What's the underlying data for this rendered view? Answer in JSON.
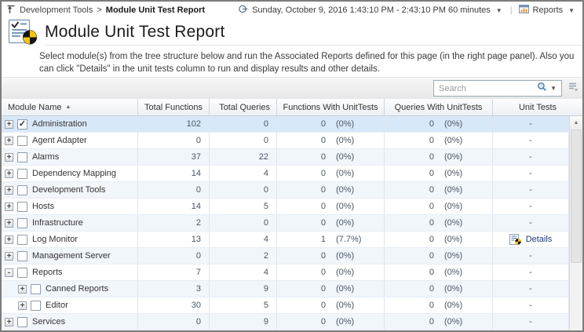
{
  "topbar": {
    "breadcrumb": {
      "parent": "Development Tools",
      "separator": ">",
      "current": "Module Unit Test Report"
    },
    "time_range": "Sunday, October 9, 2016 1:43:10 PM - 2:43:10 PM 60 minutes",
    "reports_label": "Reports"
  },
  "header": {
    "title": "Module Unit Test Report",
    "description": "Select module(s) from the tree structure below and run the Associated Reports defined for this page (in the right page panel). Also you can click \"Details\" in the unit tests column to run and display results and other details."
  },
  "toolbar": {
    "search_placeholder": "Search"
  },
  "table": {
    "columns": [
      {
        "label": "Module Name",
        "sort": "asc",
        "align": "left"
      },
      {
        "label": "Total Functions",
        "align": "right"
      },
      {
        "label": "Total Queries",
        "align": "right"
      },
      {
        "label": "Functions With UnitTests",
        "align": "center"
      },
      {
        "label": "Queries With UnitTests",
        "align": "center"
      },
      {
        "label": "Unit Tests",
        "align": "center"
      }
    ],
    "rows": [
      {
        "name": "Administration",
        "level": 0,
        "expander": "+",
        "checked": true,
        "selected": true,
        "total_functions": "102",
        "total_queries": "0",
        "functions_ut": "0",
        "functions_ut_pct": "(0%)",
        "queries_ut": "0",
        "queries_ut_pct": "(0%)",
        "unit_tests": "-"
      },
      {
        "name": "Agent Adapter",
        "level": 0,
        "expander": "+",
        "checked": false,
        "selected": false,
        "total_functions": "0",
        "total_queries": "0",
        "functions_ut": "0",
        "functions_ut_pct": "(0%)",
        "queries_ut": "0",
        "queries_ut_pct": "(0%)",
        "unit_tests": "-"
      },
      {
        "name": "Alarms",
        "level": 0,
        "expander": "+",
        "checked": false,
        "selected": false,
        "total_functions": "37",
        "total_queries": "22",
        "functions_ut": "0",
        "functions_ut_pct": "(0%)",
        "queries_ut": "0",
        "queries_ut_pct": "(0%)",
        "unit_tests": "-"
      },
      {
        "name": "Dependency Mapping",
        "level": 0,
        "expander": "+",
        "checked": false,
        "selected": false,
        "total_functions": "14",
        "total_queries": "4",
        "functions_ut": "0",
        "functions_ut_pct": "(0%)",
        "queries_ut": "0",
        "queries_ut_pct": "(0%)",
        "unit_tests": "-"
      },
      {
        "name": "Development Tools",
        "level": 0,
        "expander": "+",
        "checked": false,
        "selected": false,
        "total_functions": "0",
        "total_queries": "0",
        "functions_ut": "0",
        "functions_ut_pct": "(0%)",
        "queries_ut": "0",
        "queries_ut_pct": "(0%)",
        "unit_tests": "-"
      },
      {
        "name": "Hosts",
        "level": 0,
        "expander": "+",
        "checked": false,
        "selected": false,
        "total_functions": "14",
        "total_queries": "5",
        "functions_ut": "0",
        "functions_ut_pct": "(0%)",
        "queries_ut": "0",
        "queries_ut_pct": "(0%)",
        "unit_tests": "-"
      },
      {
        "name": "Infrastructure",
        "level": 0,
        "expander": "+",
        "checked": false,
        "selected": false,
        "total_functions": "2",
        "total_queries": "0",
        "functions_ut": "0",
        "functions_ut_pct": "(0%)",
        "queries_ut": "0",
        "queries_ut_pct": "(0%)",
        "unit_tests": "-"
      },
      {
        "name": "Log Monitor",
        "level": 0,
        "expander": "+",
        "checked": false,
        "selected": false,
        "total_functions": "13",
        "total_queries": "4",
        "functions_ut": "1",
        "functions_ut_pct": "(7.7%)",
        "queries_ut": "0",
        "queries_ut_pct": "(0%)",
        "unit_tests": "Details",
        "has_details": true
      },
      {
        "name": "Management Server",
        "level": 0,
        "expander": "+",
        "checked": false,
        "selected": false,
        "total_functions": "0",
        "total_queries": "2",
        "functions_ut": "0",
        "functions_ut_pct": "(0%)",
        "queries_ut": "0",
        "queries_ut_pct": "(0%)",
        "unit_tests": "-"
      },
      {
        "name": "Reports",
        "level": 0,
        "expander": "-",
        "checked": false,
        "selected": false,
        "total_functions": "7",
        "total_queries": "4",
        "functions_ut": "0",
        "functions_ut_pct": "(0%)",
        "queries_ut": "0",
        "queries_ut_pct": "(0%)",
        "unit_tests": "-"
      },
      {
        "name": "Canned Reports",
        "level": 1,
        "expander": "+",
        "checked": false,
        "selected": false,
        "total_functions": "3",
        "total_queries": "9",
        "functions_ut": "0",
        "functions_ut_pct": "(0%)",
        "queries_ut": "0",
        "queries_ut_pct": "(0%)",
        "unit_tests": "-"
      },
      {
        "name": "Editor",
        "level": 1,
        "expander": "+",
        "checked": false,
        "selected": false,
        "total_functions": "30",
        "total_queries": "5",
        "functions_ut": "0",
        "functions_ut_pct": "(0%)",
        "queries_ut": "0",
        "queries_ut_pct": "(0%)",
        "unit_tests": "-"
      },
      {
        "name": "Services",
        "level": 0,
        "expander": "+",
        "checked": false,
        "selected": false,
        "total_functions": "0",
        "total_queries": "9",
        "functions_ut": "0",
        "functions_ut_pct": "(0%)",
        "queries_ut": "0",
        "queries_ut_pct": "(0%)",
        "unit_tests": "-"
      }
    ]
  }
}
